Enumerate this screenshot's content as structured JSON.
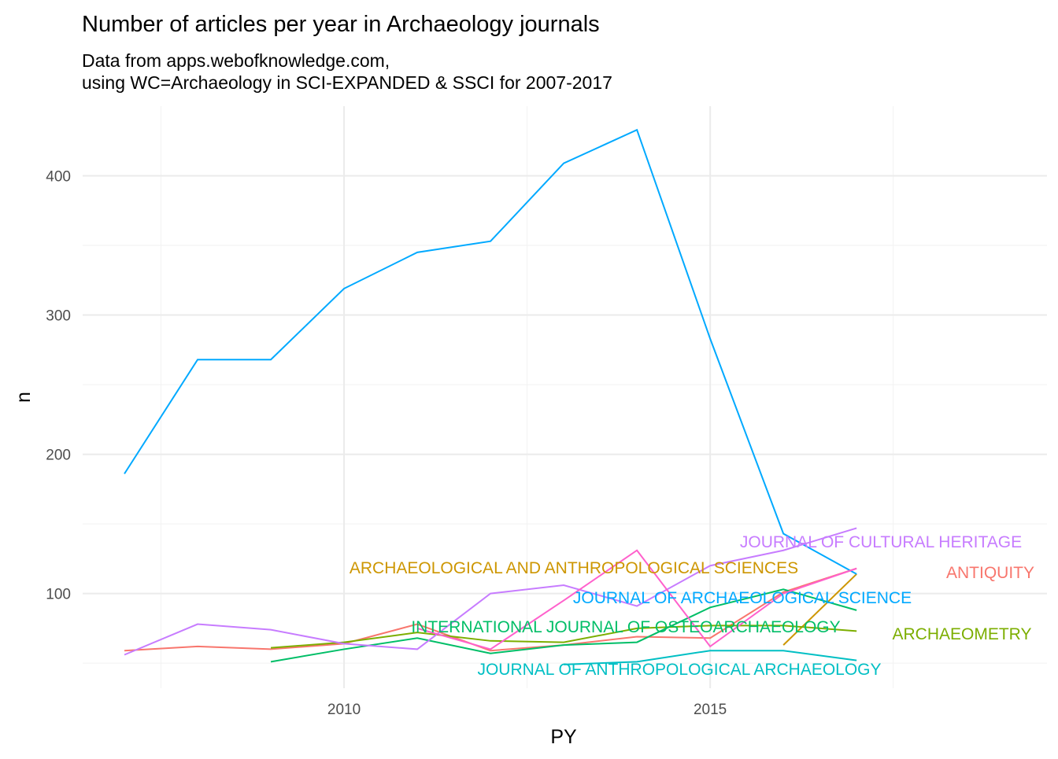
{
  "chart_data": {
    "type": "line",
    "title": "Number of articles per year in Archaeology journals",
    "subtitle": [
      "Data from apps.webofknowledge.com,",
      "using WC=Archaeology in SCI-EXPANDED & SSCI for 2007-2017"
    ],
    "x_label": "PY",
    "y_label": "n",
    "x": [
      2007,
      2008,
      2009,
      2010,
      2011,
      2012,
      2013,
      2014,
      2015,
      2016,
      2017
    ],
    "xlim": [
      2006.43,
      2019.6
    ],
    "ylim": [
      32,
      450
    ],
    "xticks": [
      2010,
      2015
    ],
    "yticks": [
      100,
      200,
      300,
      400
    ],
    "grid": true,
    "series": [
      {
        "name": "ANTIQUITY",
        "color": "#F8766D",
        "values": [
          59,
          62,
          60,
          64,
          78,
          59,
          63,
          69,
          68,
          101,
          118
        ]
      },
      {
        "name": "ARCHAEOLOGICAL AND ANTHROPOLOGICAL SCIENCES",
        "color": "#CD9600",
        "values": [
          null,
          null,
          null,
          null,
          null,
          null,
          null,
          null,
          null,
          63,
          114
        ]
      },
      {
        "name": "ARCHAEOMETRY",
        "color": "#7CAE00",
        "values": [
          null,
          null,
          61,
          65,
          72,
          66,
          65,
          75,
          77,
          77,
          73
        ]
      },
      {
        "name": "INTERNATIONAL JOURNAL OF OSTEOARCHAEOLOGY",
        "color": "#00BE67",
        "values": [
          null,
          null,
          51,
          60,
          68,
          57,
          63,
          65,
          90,
          103,
          88
        ]
      },
      {
        "name": "JOURNAL OF ANTHROPOLOGICAL ARCHAEOLOGY",
        "color": "#00BFC4",
        "values": [
          null,
          null,
          null,
          null,
          null,
          null,
          49,
          51,
          59,
          59,
          52
        ]
      },
      {
        "name": "JOURNAL OF ARCHAEOLOGICAL SCIENCE",
        "color": "#00A9FF",
        "values": [
          186,
          268,
          268,
          319,
          345,
          353,
          409,
          433,
          283,
          143,
          114
        ]
      },
      {
        "name": "JOURNAL OF CULTURAL HERITAGE",
        "color": "#C77CFF",
        "values": [
          56,
          78,
          74,
          64,
          60,
          100,
          106,
          91,
          120,
          131,
          147
        ]
      },
      {
        "name": null,
        "color": "#FF61CC",
        "values": [
          null,
          null,
          null,
          null,
          75,
          60,
          95,
          131,
          62,
          100,
          118
        ]
      }
    ]
  }
}
